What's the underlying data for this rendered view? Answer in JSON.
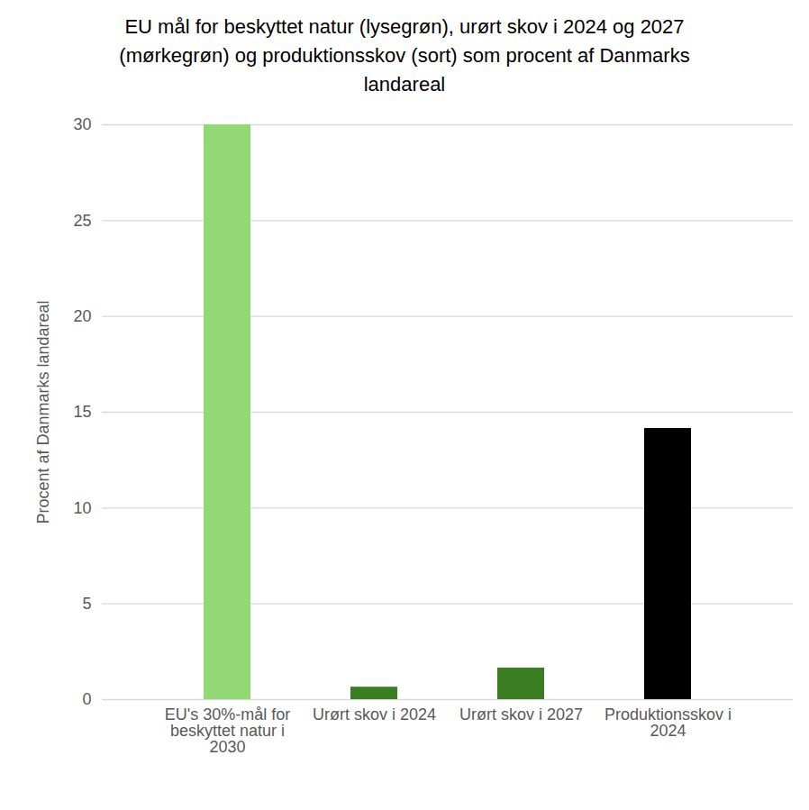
{
  "chart_data": {
    "type": "bar",
    "title": "EU mål for beskyttet natur (lysegrøn), urørt skov i 2024 og 2027 (mørkegrøn) og produktionsskov (sort) som procent af Danmarks landareal",
    "y_label": "Procent af Danmarks landareal",
    "categories": [
      "EU's 30%-mål for beskyttet natur i 2030",
      "Urørt skov i 2024",
      "Urørt skov i 2027",
      "Produktionsskov i 2024"
    ],
    "values": [
      30,
      0.65,
      1.65,
      14.15
    ],
    "colors": [
      "#92d874",
      "#3a7d22",
      "#3a7d22",
      "#000000"
    ],
    "ylim": [
      0,
      30
    ],
    "yticks": [
      0,
      5,
      10,
      15,
      20,
      25,
      30
    ],
    "grid": true
  }
}
